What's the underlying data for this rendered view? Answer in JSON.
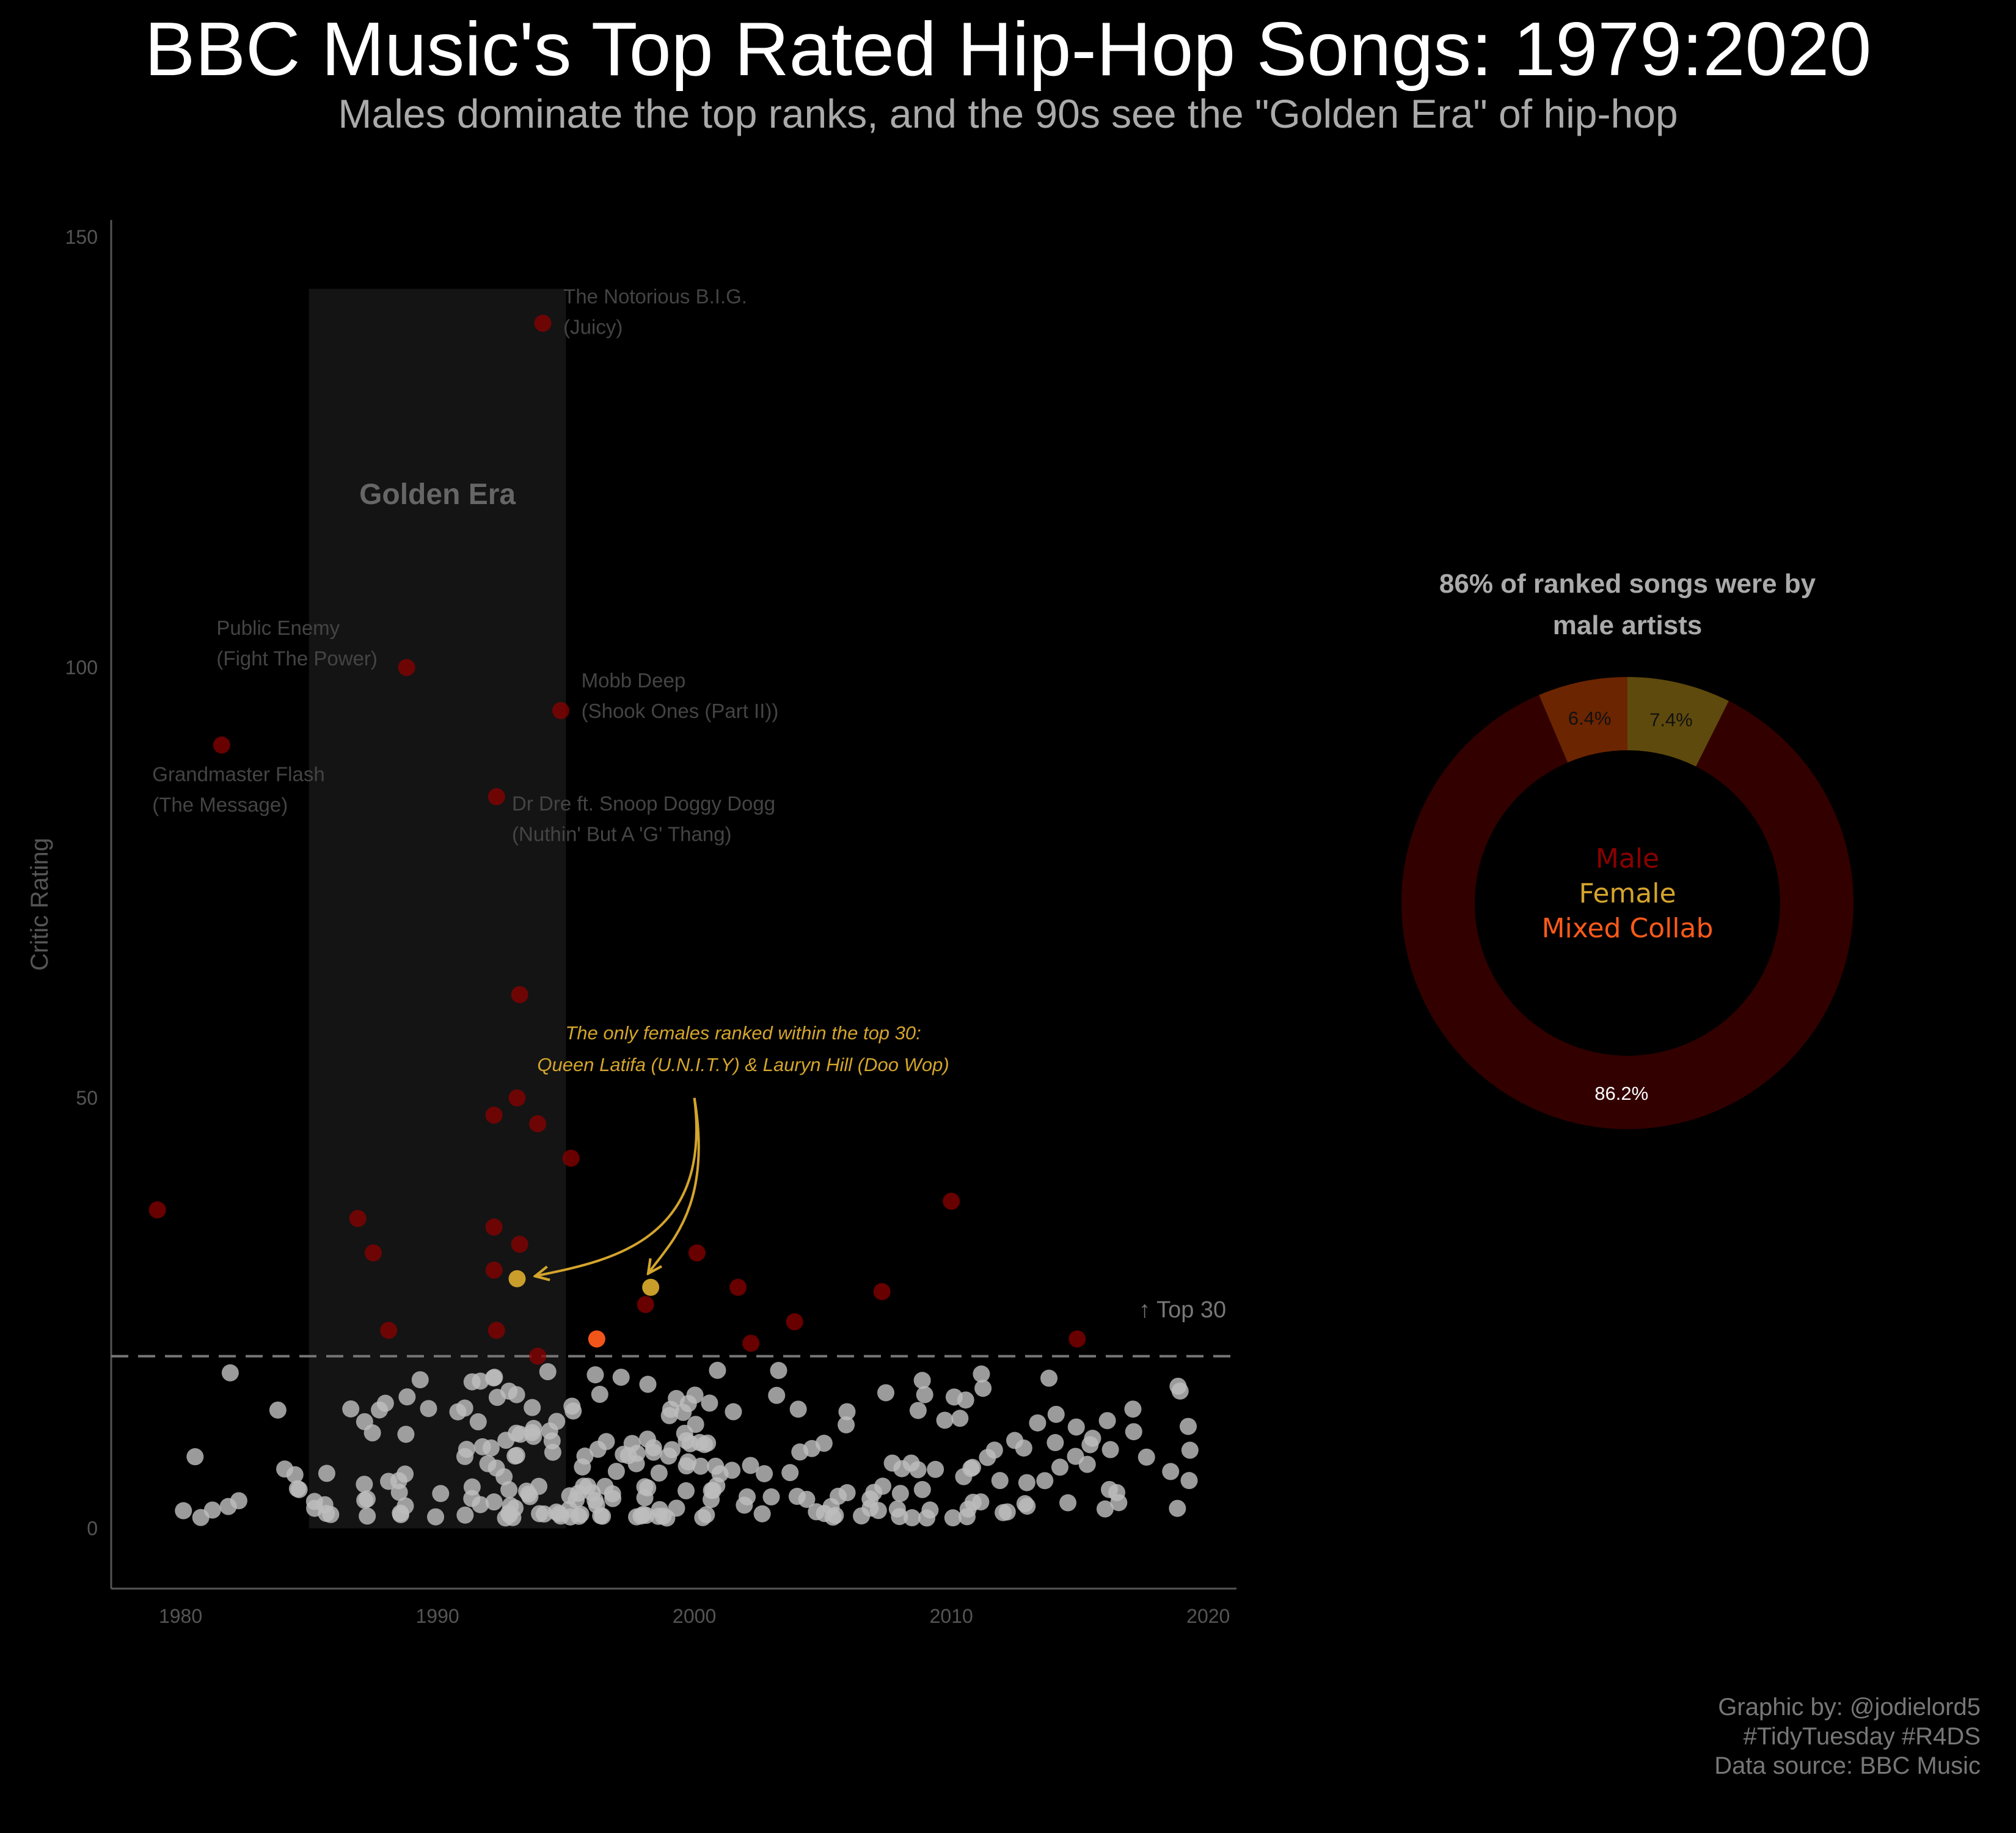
{
  "title": "BBC Music's Top Rated Hip-Hop Songs: 1979:2020",
  "subtitle": "Males dominate the top ranks, and the 90s see the \"Golden Era\" of hip-hop",
  "caption": [
    "Graphic by: @jodielord5",
    "#TidyTuesday #R4DS",
    "Data source: BBC Music"
  ],
  "chart_data": [
    {
      "type": "scatter",
      "title": "",
      "xlabel": "",
      "ylabel": "Critic Rating",
      "xlim": [
        1977.3,
        2021.1
      ],
      "ylim": [
        -7,
        152
      ],
      "x_ticks": [
        1980,
        1990,
        2000,
        2010,
        2020
      ],
      "y_ticks": [
        0,
        50,
        100,
        150
      ],
      "grid": false,
      "colors": {
        "Male": "#8b0000",
        "Female": "#d4a52c",
        "Mixed Collab": "#ff5a1a",
        "Unranked": "#bdbdbd",
        "band": "#141414",
        "threshold": "#777777"
      },
      "shaded_band": {
        "label": "Golden Era",
        "x": [
          1985,
          1995
        ],
        "y": [
          0,
          144
        ]
      },
      "threshold": {
        "y": 20,
        "label": "↑ Top 30"
      },
      "ranked_points": [
        {
          "x": 1994.1,
          "y": 140,
          "group": "Male"
        },
        {
          "x": 1988.8,
          "y": 100,
          "group": "Male"
        },
        {
          "x": 1994.8,
          "y": 95,
          "group": "Male"
        },
        {
          "x": 1981.6,
          "y": 91,
          "group": "Male"
        },
        {
          "x": 1992.3,
          "y": 85,
          "group": "Male"
        },
        {
          "x": 1993.2,
          "y": 62,
          "group": "Male"
        },
        {
          "x": 1993.1,
          "y": 50,
          "group": "Male"
        },
        {
          "x": 1992.2,
          "y": 48,
          "group": "Male"
        },
        {
          "x": 1993.9,
          "y": 47,
          "group": "Male"
        },
        {
          "x": 1995.2,
          "y": 43,
          "group": "Male"
        },
        {
          "x": 2010.0,
          "y": 38,
          "group": "Male"
        },
        {
          "x": 1979.1,
          "y": 37,
          "group": "Male"
        },
        {
          "x": 1986.9,
          "y": 36,
          "group": "Male"
        },
        {
          "x": 1992.2,
          "y": 35,
          "group": "Male"
        },
        {
          "x": 1993.2,
          "y": 33,
          "group": "Male"
        },
        {
          "x": 2000.1,
          "y": 32,
          "group": "Male"
        },
        {
          "x": 1987.5,
          "y": 32,
          "group": "Male"
        },
        {
          "x": 1992.2,
          "y": 30,
          "group": "Male"
        },
        {
          "x": 1993.1,
          "y": 29,
          "group": "Female"
        },
        {
          "x": 1998.3,
          "y": 28,
          "group": "Female"
        },
        {
          "x": 2001.7,
          "y": 28,
          "group": "Male"
        },
        {
          "x": 2007.3,
          "y": 27.5,
          "group": "Male"
        },
        {
          "x": 1998.1,
          "y": 26,
          "group": "Male"
        },
        {
          "x": 2003.9,
          "y": 24,
          "group": "Male"
        },
        {
          "x": 1988.1,
          "y": 23,
          "group": "Male"
        },
        {
          "x": 1992.3,
          "y": 23,
          "group": "Male"
        },
        {
          "x": 1996.2,
          "y": 22,
          "group": "Mixed Collab"
        },
        {
          "x": 2014.9,
          "y": 22,
          "group": "Male"
        },
        {
          "x": 2002.2,
          "y": 21.5,
          "group": "Male"
        },
        {
          "x": 1993.9,
          "y": 20,
          "group": "Male"
        }
      ],
      "annotations": [
        {
          "x": 1994.9,
          "y": 142.3,
          "lines": [
            "The Notorious B.I.G.",
            "(Juicy)"
          ]
        },
        {
          "x": 1981.4,
          "y": 103.8,
          "lines": [
            "Public Enemy",
            "(Fight The Power)"
          ]
        },
        {
          "x": 1995.6,
          "y": 97.7,
          "lines": [
            "Mobb Deep",
            "(Shook Ones (Part II))"
          ]
        },
        {
          "x": 1978.9,
          "y": 86.8,
          "lines": [
            "Grandmaster Flash",
            "(The Message)"
          ]
        },
        {
          "x": 1992.9,
          "y": 83.4,
          "lines": [
            "Dr Dre ft. Snoop Doggy Dogg",
            "(Nuthin' But A 'G' Thang)"
          ]
        }
      ],
      "female_note": [
        "The only females ranked within the top 30:",
        "Queen Latifa (U.N.I.T.Y) & Lauryn Hill (Doo Wop)"
      ]
    },
    {
      "type": "pie",
      "title": "86% of ranked songs were by male artists",
      "slices": [
        {
          "label": "Male",
          "value": 86.2,
          "display": "86.2%",
          "color": "#330000"
        },
        {
          "label": "Female",
          "value": 7.4,
          "display": "7.4%",
          "color": "#5e4a0c"
        },
        {
          "label": "Mixed Collab",
          "value": 6.4,
          "display": "6.4%",
          "color": "#6b2500"
        }
      ],
      "legend": [
        {
          "label": "Male",
          "color": "#8b0000"
        },
        {
          "label": "Female",
          "color": "#d4a52c"
        },
        {
          "label": "Mixed Collab",
          "color": "#ff5a1a"
        }
      ]
    }
  ]
}
